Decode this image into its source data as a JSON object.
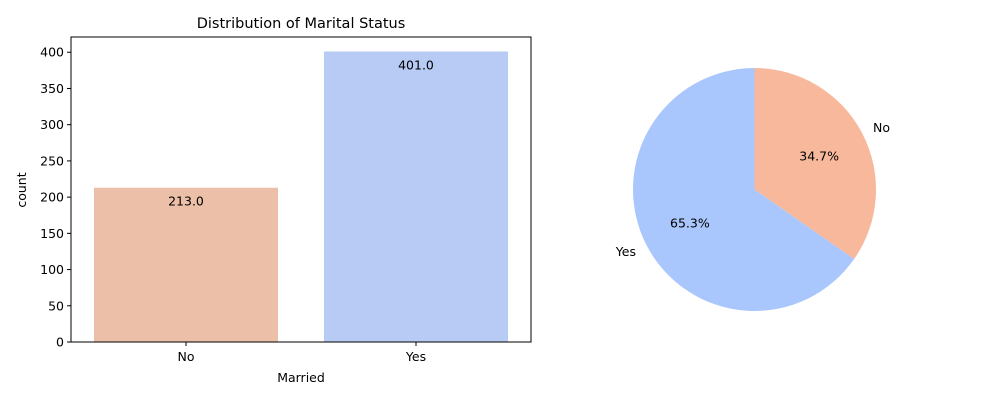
{
  "chart_data": [
    {
      "type": "bar",
      "title": "Distribution of Marital Status",
      "xlabel": "Married",
      "ylabel": "count",
      "categories": [
        "No",
        "Yes"
      ],
      "values": [
        213.0,
        401.0
      ],
      "value_labels": [
        "213.0",
        "401.0"
      ],
      "colors": [
        "#ecbfa8",
        "#b7cbf4"
      ],
      "ylim": [
        0,
        421.05
      ],
      "yticks": [
        0,
        50,
        100,
        150,
        200,
        250,
        300,
        350,
        400
      ],
      "ytick_labels": [
        "0",
        "50",
        "100",
        "150",
        "200",
        "250",
        "300",
        "350",
        "400"
      ],
      "grid": false,
      "legend": "none"
    },
    {
      "type": "pie",
      "slices": [
        {
          "label": "No",
          "value": 34.7,
          "pct_label": "34.7%",
          "color": "#f7b89c"
        },
        {
          "label": "Yes",
          "value": 65.3,
          "pct_label": "65.3%",
          "color": "#aac7fd"
        }
      ],
      "start_angle_deg": 90,
      "direction": "clockwise",
      "legend": "none"
    }
  ]
}
